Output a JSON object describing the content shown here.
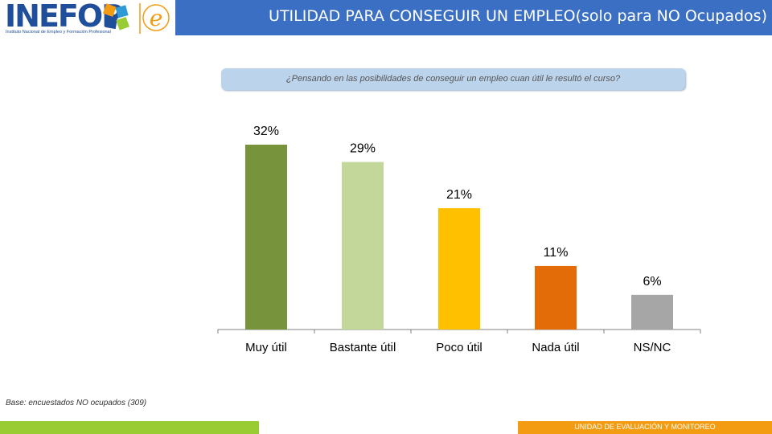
{
  "header": {
    "logo_text": "INEFOP",
    "logo_subtitle": "Instituto Nacional de Empleo y Formación Profesional",
    "title_main": "UTILIDAD PARA CONSEGUIR UN EMPLEO",
    "title_sub": "(solo para NO Ocupados)",
    "accent": "#3a6fc4"
  },
  "question": "¿Pensando en las posibilidades de conseguir un empleo cuan útil le resultó el curso?",
  "base_note": "Base: encuestados NO ocupados (309)",
  "footer": {
    "unit_text": "UNIDAD DE EVALUACIÓN Y MONITOREO",
    "green": "#99cc33",
    "orange": "#f39c12"
  },
  "chart_data": {
    "type": "bar",
    "title": "",
    "categories": [
      "Muy útil",
      "Bastante útil",
      "Poco útil",
      "Nada útil",
      "NS/NC"
    ],
    "values": [
      32,
      29,
      21,
      11,
      6
    ],
    "labels": [
      "32%",
      "29%",
      "21%",
      "11%",
      "6%"
    ],
    "colors": [
      "#77933c",
      "#c4d79b",
      "#ffc000",
      "#e36c09",
      "#a6a6a6"
    ],
    "xlabel": "",
    "ylabel": "",
    "ylim": [
      0,
      35
    ],
    "grid": false,
    "legend": "none"
  }
}
